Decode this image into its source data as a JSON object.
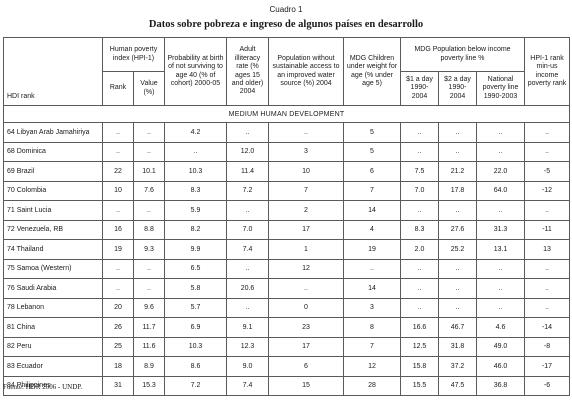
{
  "caption": "Cuadro 1",
  "title": "Datos sobre pobreza e ingreso de algunos países en desarrollo",
  "headers": {
    "hdi_rank": "HDI rank",
    "hpi": "Human poverty index (HPI-1)",
    "hpi_rank": "Rank",
    "hpi_value": "Value (%)",
    "prob_survive": "Probability at birth of not surviving to age 40 (% of cohort) 2000-05",
    "illiteracy": "Adult illiteracy rate (% ages 15 and older) 2004",
    "water": "Population without sustainable access to an improved water source (%) 2004",
    "underweight": "MDG Children under weight for age (% under age 5)",
    "poverty_group": "MDG Population below income poverty line %",
    "dollar1": "$1 a day 1990-2004",
    "dollar2": "$2 a day 1990-2004",
    "national": "National poverty line 1990-2003",
    "hpi_minus": "HPI-1 rank min-us income poverty rank"
  },
  "section_label": "MEDIUM HUMAN DEVELOPMENT",
  "rows": [
    [
      "64 Libyan Arab Jamahiriya",
      "..",
      "..",
      "4.2",
      "..",
      "..",
      "5",
      "..",
      "..",
      "..",
      ".."
    ],
    [
      "68 Dominica",
      "..",
      "..",
      "..",
      "12.0",
      "3",
      "5",
      "..",
      "..",
      "..",
      ".."
    ],
    [
      "69 Brazil",
      "22",
      "10.1",
      "10.3",
      "11.4",
      "10",
      "6",
      "7.5",
      "21.2",
      "22.0",
      "-5"
    ],
    [
      "70 Colombia",
      "10",
      "7.6",
      "8.3",
      "7.2",
      "7",
      "7",
      "7.0",
      "17.8",
      "64.0",
      "-12"
    ],
    [
      "71 Saint Lucia",
      "..",
      "..",
      "5.9",
      "..",
      "2",
      "14",
      "..",
      "..",
      "..",
      ".."
    ],
    [
      "72 Venezuela, RB",
      "16",
      "8.8",
      "8.2",
      "7.0",
      "17",
      "4",
      "8.3",
      "27.6",
      "31.3",
      "-11"
    ],
    [
      "74 Thailand",
      "19",
      "9.3",
      "9.9",
      "7.4",
      "1",
      "19",
      "2.0",
      "25.2",
      "13.1",
      "13"
    ],
    [
      "75 Samoa (Western)",
      "..",
      "..",
      "6.5",
      "..",
      "12",
      "..",
      "..",
      "..",
      "..",
      ".."
    ],
    [
      "76 Saudi Arabia",
      "..",
      "..",
      "5.8",
      "20.6",
      "..",
      "14",
      "..",
      "..",
      "..",
      ".."
    ],
    [
      "78 Lebanon",
      "20",
      "9.6",
      "5.7",
      "..",
      "0",
      "3",
      "..",
      "..",
      "..",
      ".."
    ],
    [
      "81 China",
      "26",
      "11.7",
      "6.9",
      "9.1",
      "23",
      "8",
      "16.6",
      "46.7",
      "4.6",
      "-14"
    ],
    [
      "82 Peru",
      "25",
      "11.6",
      "10.3",
      "12.3",
      "17",
      "7",
      "12.5",
      "31.8",
      "49.0",
      "-8"
    ],
    [
      "83 Ecuador",
      "18",
      "8.9",
      "8.6",
      "9.0",
      "6",
      "12",
      "15.8",
      "37.2",
      "46.0",
      "-17"
    ],
    [
      "84 Philippines",
      "31",
      "15.3",
      "7.2",
      "7.4",
      "15",
      "28",
      "15.5",
      "47.5",
      "36.8",
      "-6"
    ]
  ],
  "source": "Fuente: HDR 2006 - UNDP."
}
